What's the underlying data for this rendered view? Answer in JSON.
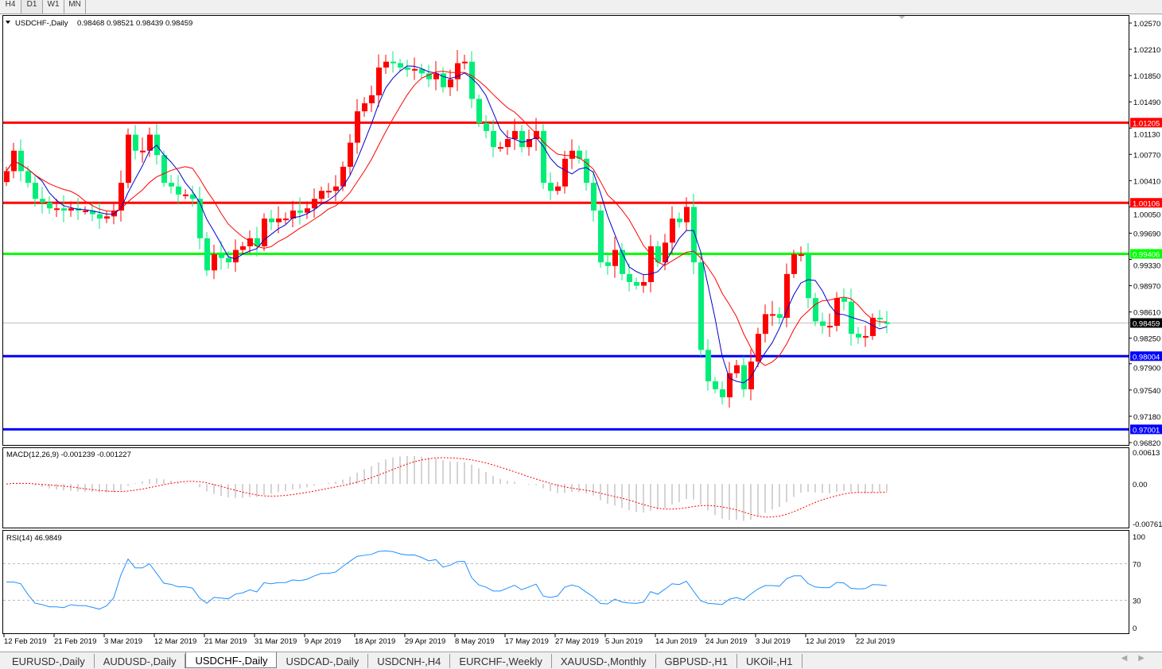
{
  "timeframe_tabs": [
    "H4",
    "D1",
    "W1",
    "MN"
  ],
  "active_timeframe": "D1",
  "chart": {
    "symbol_label": "USDCHF-,Daily",
    "ohlc_label": "0.98468 0.98521 0.98439 0.98459",
    "price_ticks": [
      "1.02570",
      "1.02210",
      "1.01850",
      "1.01490",
      "1.01130",
      "1.00770",
      "1.00410",
      "1.00050",
      "0.99690",
      "0.99330",
      "0.98970",
      "0.98610",
      "0.98250",
      "0.97900",
      "0.97540",
      "0.97180",
      "0.96820"
    ],
    "levels": [
      {
        "price": 1.01205,
        "label": "1.01205",
        "color": "#ff0000"
      },
      {
        "price": 1.00106,
        "label": "1.00106",
        "color": "#ff0000"
      },
      {
        "price": 0.99406,
        "label": "0.99406",
        "color": "#00ff00"
      },
      {
        "price": 0.98004,
        "label": "0.98004",
        "color": "#0000ff"
      },
      {
        "price": 0.97001,
        "label": "0.97001",
        "color": "#0000ff"
      }
    ],
    "current_price": {
      "price": 0.98459,
      "label": "0.98459"
    },
    "bull_color": "#ff0000",
    "bear_color": "#00ee77",
    "ma_fast_color": "#0000cc",
    "ma_slow_color": "#ff0000"
  },
  "chart_data": {
    "type": "candlestick",
    "last_open": 0.98468,
    "closes": [
      1.0054,
      1.0082,
      1.0054,
      1.0038,
      1.0016,
      1.0011,
      1.0003,
      1.0003,
      1.0,
      1.0003,
      1.0,
      1.0,
      0.9995,
      0.9989,
      0.9992,
      1.0,
      1.0038,
      1.0104,
      1.0082,
      1.0082,
      1.0104,
      1.0076,
      1.0038,
      1.0033,
      1.0022,
      1.0022,
      1.0016,
      0.9962,
      0.9918,
      0.994,
      0.9935,
      0.9929,
      0.9946,
      0.9951,
      0.9962,
      0.9951,
      0.9989,
      0.9984,
      0.9989,
      0.9989,
      1.0,
      0.9997,
      1.0003,
      1.0016,
      1.0027,
      1.0027,
      1.0033,
      1.006,
      1.0093,
      1.0136,
      1.0147,
      1.0158,
      1.0196,
      1.0204,
      1.0202,
      1.0196,
      1.0193,
      1.0194,
      1.0188,
      1.018,
      1.0188,
      1.0169,
      1.018,
      1.0202,
      1.0204,
      1.0153,
      1.012,
      1.0109,
      1.0087,
      1.0087,
      1.0098,
      1.0109,
      1.0087,
      1.0098,
      1.0109,
      1.0038,
      1.0027,
      1.0033,
      1.0071,
      1.0082,
      1.0071,
      1.0038,
      1.0,
      0.9929,
      0.9924,
      0.9946,
      0.9913,
      0.9902,
      0.9897,
      0.9902,
      0.9951,
      0.9929,
      0.9956,
      0.9989,
      0.9984,
      1.0005,
      0.9929,
      0.9809,
      0.9766,
      0.9755,
      0.9744,
      0.9777,
      0.9788,
      0.9755,
      0.9793,
      0.9831,
      0.9858,
      0.9858,
      0.9853,
      0.9913,
      0.994,
      0.994,
      0.988,
      0.9848,
      0.9842,
      0.9842,
      0.988,
      0.9875,
      0.9831,
      0.9826,
      0.9828,
      0.9853,
      0.9851,
      0.98459
    ],
    "ylim": [
      0.9682,
      1.0257
    ],
    "date_labels": [
      "12 Feb 2019",
      "21 Feb 2019",
      "3 Mar 2019",
      "12 Mar 2019",
      "21 Mar 2019",
      "31 Mar 2019",
      "9 Apr 2019",
      "18 Apr 2019",
      "29 Apr 2019",
      "8 May 2019",
      "17 May 2019",
      "27 May 2019",
      "5 Jun 2019",
      "14 Jun 2019",
      "24 Jun 2019",
      "3 Jul 2019",
      "12 Jul 2019",
      "22 Jul 2019"
    ]
  },
  "macd": {
    "label": "MACD(12,26,9) -0.001239 -0.001227",
    "ticks": [
      "0.00613",
      "0.00",
      "-0.007612"
    ],
    "ylim": [
      -0.007612,
      0.00613
    ]
  },
  "rsi": {
    "label": "RSI(14) 46.9849",
    "ticks": [
      "100",
      "70",
      "30",
      "0"
    ],
    "levels": [
      70,
      30
    ]
  },
  "symbol_tabs": [
    "EURUSD-,Daily",
    "AUDUSD-,Daily",
    "USDCHF-,Daily",
    "USDCAD-,Daily",
    "USDCNH-,H4",
    "EURCHF-,Weekly",
    "XAUUSD-,Monthly",
    "GBPUSD-,H1",
    "UKOil-,H1"
  ],
  "active_symbol_tab": "USDCHF-,Daily"
}
